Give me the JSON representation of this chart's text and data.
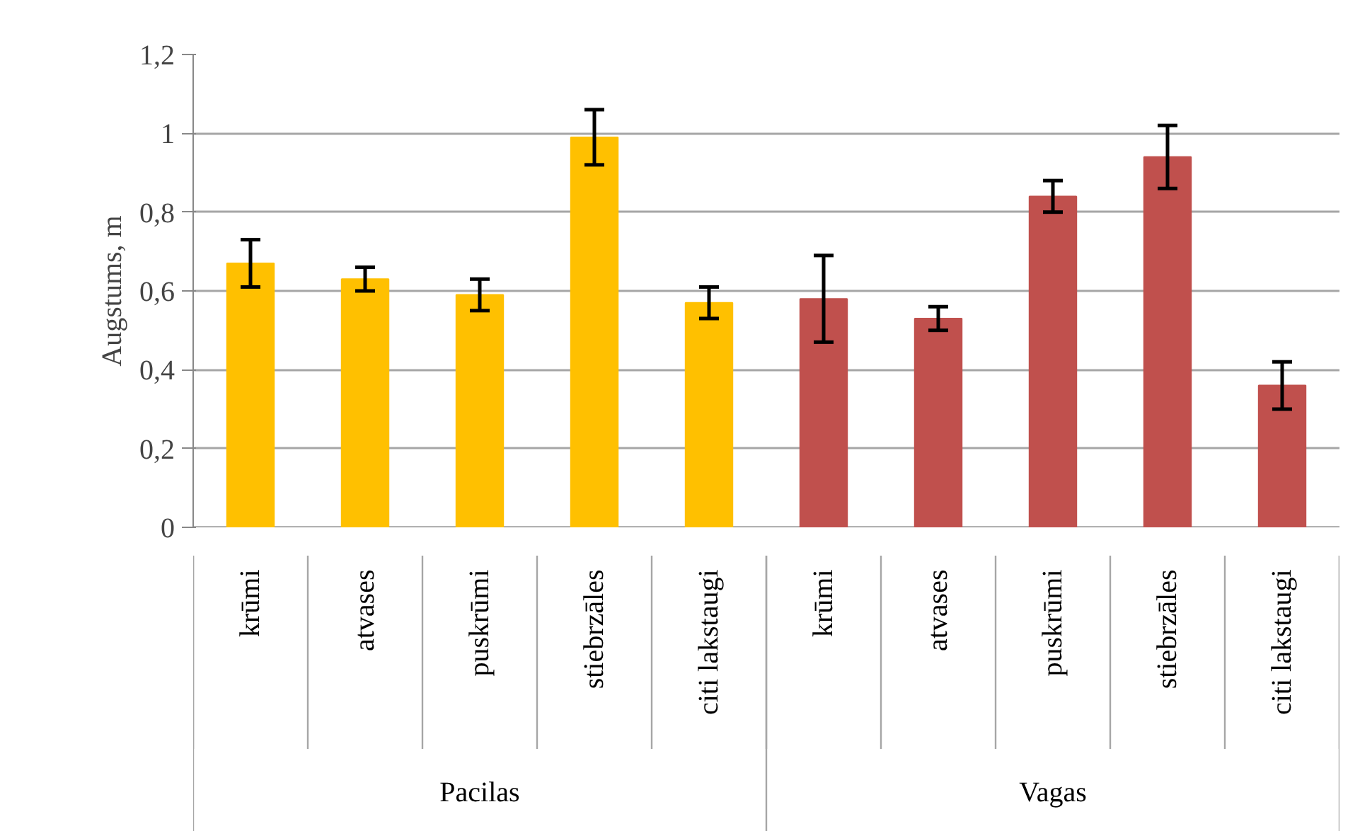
{
  "chart_data": {
    "type": "bar",
    "ylabel": "Augstums, m",
    "categories": [
      "krūmi",
      "atvases",
      "puskrūmi",
      "stiebrzāles",
      "citi lakstaugi",
      "krūmi",
      "atvases",
      "puskrūmi",
      "stiebrzāles",
      "citi lakstaugi"
    ],
    "values": [
      0.67,
      0.63,
      0.59,
      0.99,
      0.57,
      0.58,
      0.53,
      0.84,
      0.94,
      0.36
    ],
    "errors": [
      0.06,
      0.03,
      0.04,
      0.07,
      0.04,
      0.11,
      0.03,
      0.04,
      0.08,
      0.06
    ],
    "colors": [
      "#ffc000",
      "#ffc000",
      "#ffc000",
      "#ffc000",
      "#ffc000",
      "#c0504d",
      "#c0504d",
      "#c0504d",
      "#c0504d",
      "#c0504d"
    ],
    "annotations": [
      "Pacilas",
      "Vagas"
    ],
    "ylim": [
      0,
      1.2
    ],
    "yticks": [
      0,
      {
        "value": 0.2,
        "label": "0,2"
      },
      {
        "value": 0.4,
        "label": "0,4"
      },
      {
        "value": 0.6,
        "label": "0,6"
      },
      {
        "value": 0.8,
        "label": "0,8"
      },
      1,
      {
        "value": 1.2,
        "label": "1,2"
      }
    ],
    "grid": "y"
  }
}
